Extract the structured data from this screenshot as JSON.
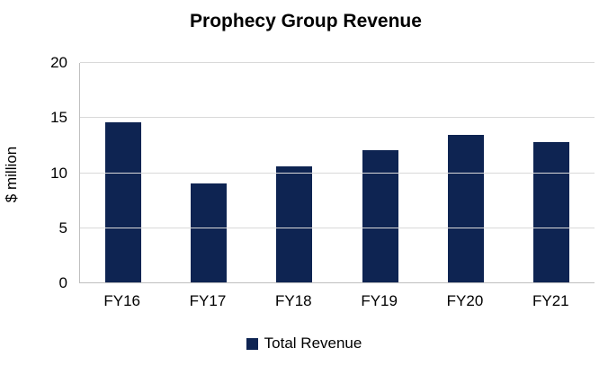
{
  "chart_data": {
    "type": "bar",
    "title": "Prophecy Group Revenue",
    "categories": [
      "FY16",
      "FY17",
      "FY18",
      "FY19",
      "FY20",
      "FY21"
    ],
    "series": [
      {
        "name": "Total Revenue",
        "values": [
          14.6,
          9.1,
          10.6,
          12.1,
          13.5,
          12.8
        ]
      }
    ],
    "xlabel": "",
    "ylabel": "$ million",
    "ylim": [
      0,
      20
    ],
    "yticks": [
      0,
      5,
      10,
      15,
      20
    ],
    "grid": true,
    "legend_position": "bottom",
    "colors": {
      "bar": "#0e2452",
      "gridline": "#d9d9d9",
      "axis": "#bfbfbf",
      "background": "#ffffff",
      "text": "#000000"
    }
  }
}
